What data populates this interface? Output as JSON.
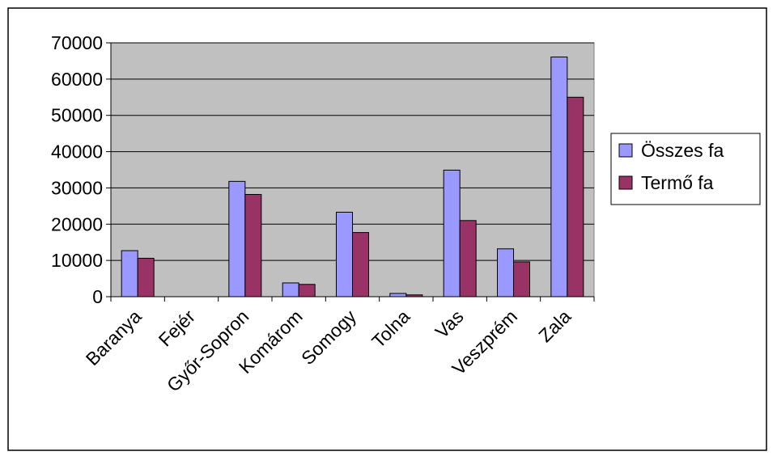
{
  "chart_data": {
    "type": "bar",
    "categories": [
      "Baranya",
      "Fejér",
      "Győr-Sopron",
      "Komárom",
      "Somogy",
      "Tolna",
      "Vas",
      "Veszprém",
      "Zala"
    ],
    "series": [
      {
        "name": "Összes fa",
        "color": "#9999ff",
        "values": [
          12700,
          0,
          31800,
          3800,
          23300,
          900,
          34900,
          13200,
          66100
        ]
      },
      {
        "name": "Termő fa",
        "color": "#993366",
        "values": [
          10600,
          0,
          28200,
          3400,
          17700,
          500,
          21000,
          9600,
          55000
        ]
      }
    ],
    "ylim": [
      0,
      70000
    ],
    "yticks": [
      0,
      10000,
      20000,
      30000,
      40000,
      50000,
      60000,
      70000
    ],
    "grid": true,
    "plot_background": "#c0c0c0",
    "legend_position": "right",
    "title": "",
    "xlabel": "",
    "ylabel": ""
  }
}
